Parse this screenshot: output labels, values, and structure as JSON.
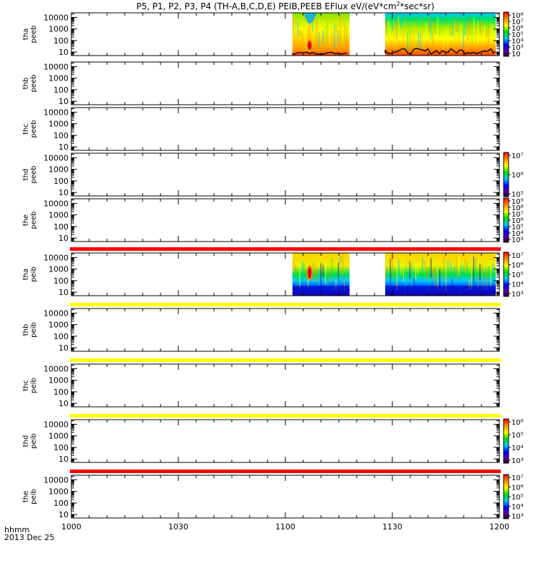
{
  "title_prefix": "P5, P1, P2, P3, P4 (TH-A,B,C,D,E) PEIB,PEEB EFlux eV/(eV*cm",
  "title_sup": "2",
  "title_suffix": "*sec*sr)",
  "xaxis": {
    "label_line1": "hhmm",
    "label_line2": "2013 Dec 25"
  },
  "chart_data": {
    "type": "heatmap",
    "x_range": [
      "1000",
      "1200"
    ],
    "x_ticks": [
      "1000",
      "1030",
      "1100",
      "1130",
      "1200"
    ],
    "y_scale": "log",
    "y_ticks": [
      "10",
      "100",
      "1000",
      "10000"
    ],
    "panels": [
      {
        "probe": "tha",
        "product": "peeb",
        "data_intervals": [
          [
            "1102",
            "1118"
          ],
          [
            "1128",
            "1159"
          ]
        ],
        "colorbar": [
          "10",
          "10³",
          "10⁴",
          "10⁵",
          "10⁶",
          "10⁷",
          "10⁸"
        ]
      },
      {
        "probe": "thb",
        "product": "peeb",
        "data_intervals": []
      },
      {
        "probe": "thc",
        "product": "peeb",
        "data_intervals": []
      },
      {
        "probe": "thd",
        "product": "peeb",
        "data_intervals": [],
        "colorbar": [
          "10⁵",
          "10⁶",
          "10⁷"
        ]
      },
      {
        "probe": "the",
        "product": "peeb",
        "data_intervals": [],
        "colorbar": [
          "10³",
          "10⁴",
          "10⁵",
          "10⁶",
          "10⁷",
          "10⁸",
          "10⁹"
        ]
      },
      {
        "probe": "tha",
        "product": "peib",
        "flag_bar": "red",
        "data_intervals": [
          [
            "1102",
            "1118"
          ],
          [
            "1128",
            "1159"
          ]
        ],
        "colorbar": [
          "10³",
          "10⁴",
          "10⁵",
          "10⁶",
          "10⁷"
        ]
      },
      {
        "probe": "thb",
        "product": "peib",
        "flag_bar": "yellow",
        "data_intervals": []
      },
      {
        "probe": "thc",
        "product": "peib",
        "flag_bar": "yellow",
        "data_intervals": []
      },
      {
        "probe": "thd",
        "product": "peib",
        "flag_bar": "yellow",
        "data_intervals": [],
        "colorbar": [
          "10³",
          "10⁴",
          "10⁵",
          "10⁶"
        ]
      },
      {
        "probe": "the",
        "product": "peib",
        "flag_bar": "red",
        "data_intervals": [],
        "colorbar": [
          "10³",
          "10⁴",
          "10⁵",
          "10⁶",
          "10⁷"
        ]
      }
    ]
  }
}
